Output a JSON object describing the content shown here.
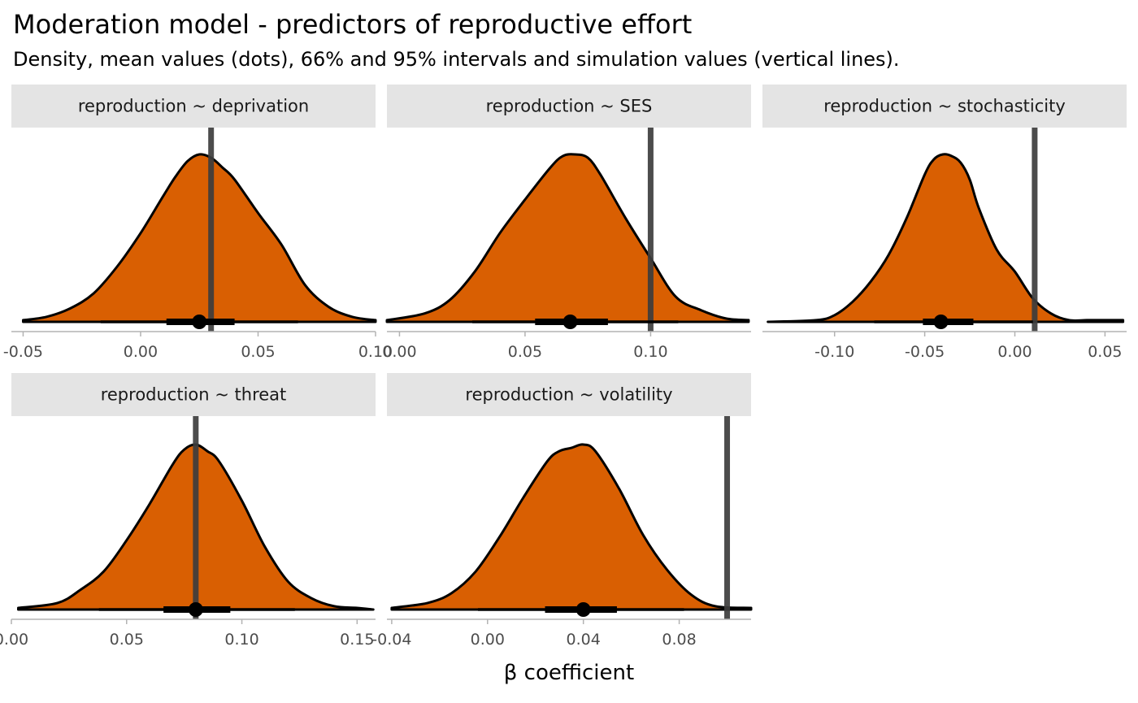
{
  "title": "Moderation model - predictors of reproductive effort",
  "subtitle": "Density, mean values (dots), 66% and 95% intervals and simulation values (vertical lines).",
  "x_axis_title": "β coefficient",
  "colors": {
    "fill": "#d95f02",
    "sim_line": "#3d3d3d",
    "strip": "#e4e4e4"
  },
  "chart_data": {
    "type": "area",
    "facet_layout": "3 columns × 2 rows",
    "xlabel": "β coefficient",
    "ylabel": "",
    "panels": [
      {
        "label": "reproduction ~ deprivation",
        "xlim": [
          -0.055,
          0.1
        ],
        "ticks": [
          -0.05,
          0.0,
          0.05,
          0.1
        ],
        "tick_labels": [
          "-0.05",
          "0.00",
          "0.05",
          "0.10"
        ],
        "mean": 0.025,
        "ci66": [
          0.011,
          0.04
        ],
        "ci95": [
          -0.017,
          0.067
        ],
        "simulation_value": 0.03,
        "density": {
          "x": [
            -0.05,
            -0.04,
            -0.03,
            -0.02,
            -0.01,
            0.0,
            0.01,
            0.015,
            0.02,
            0.025,
            0.03,
            0.035,
            0.04,
            0.05,
            0.06,
            0.07,
            0.08,
            0.09,
            0.1
          ],
          "y": [
            0.01,
            0.03,
            0.08,
            0.17,
            0.33,
            0.53,
            0.76,
            0.87,
            0.96,
            1.0,
            0.98,
            0.92,
            0.85,
            0.65,
            0.46,
            0.22,
            0.09,
            0.03,
            0.01
          ]
        }
      },
      {
        "label": "reproduction ~ SES",
        "xlim": [
          -0.005,
          0.14
        ],
        "ticks": [
          0.0,
          0.05,
          0.1
        ],
        "tick_labels": [
          "0.00",
          "0.05",
          "0.10"
        ],
        "mean": 0.068,
        "ci66": [
          0.054,
          0.083
        ],
        "ci95": [
          0.029,
          0.111
        ],
        "simulation_value": 0.1,
        "density": {
          "x": [
            -0.005,
            0.01,
            0.02,
            0.03,
            0.04,
            0.05,
            0.06,
            0.065,
            0.07,
            0.075,
            0.08,
            0.09,
            0.1,
            0.11,
            0.12,
            0.13,
            0.139
          ],
          "y": [
            0.01,
            0.05,
            0.13,
            0.3,
            0.53,
            0.73,
            0.92,
            0.99,
            1.0,
            0.98,
            0.88,
            0.62,
            0.38,
            0.15,
            0.07,
            0.02,
            0.01
          ]
        }
      },
      {
        "label": "reproduction ~ stochasticity",
        "xlim": [
          -0.14,
          0.062
        ],
        "ticks": [
          -0.1,
          -0.05,
          0.0,
          0.05
        ],
        "tick_labels": [
          "-0.10",
          "-0.05",
          "0.00",
          "0.05"
        ],
        "mean": -0.041,
        "ci66": [
          -0.051,
          -0.023
        ],
        "ci95": [
          -0.078,
          0.01
        ],
        "simulation_value": 0.011,
        "density": {
          "x": [
            -0.137,
            -0.11,
            -0.1,
            -0.09,
            -0.08,
            -0.07,
            -0.06,
            -0.05,
            -0.045,
            -0.04,
            -0.035,
            -0.03,
            -0.025,
            -0.02,
            -0.01,
            0.0,
            0.01,
            0.02,
            0.03,
            0.04,
            0.05,
            0.06
          ],
          "y": [
            0.0,
            0.01,
            0.04,
            0.12,
            0.24,
            0.4,
            0.62,
            0.88,
            0.97,
            1.0,
            0.99,
            0.95,
            0.85,
            0.68,
            0.43,
            0.3,
            0.14,
            0.05,
            0.01,
            0.01,
            0.01,
            0.01
          ]
        }
      },
      {
        "label": "reproduction ~ threat",
        "xlim": [
          0.0,
          0.158
        ],
        "ticks": [
          0.0,
          0.05,
          0.1,
          0.15
        ],
        "tick_labels": [
          "0.00",
          "0.05",
          "0.10",
          "0.15"
        ],
        "mean": 0.08,
        "ci66": [
          0.066,
          0.095
        ],
        "ci95": [
          0.038,
          0.123
        ],
        "simulation_value": 0.08,
        "density": {
          "x": [
            0.003,
            0.02,
            0.03,
            0.04,
            0.05,
            0.06,
            0.07,
            0.075,
            0.08,
            0.085,
            0.09,
            0.1,
            0.11,
            0.12,
            0.13,
            0.14,
            0.15,
            0.157
          ],
          "y": [
            0.01,
            0.04,
            0.12,
            0.23,
            0.42,
            0.64,
            0.88,
            0.97,
            1.0,
            0.96,
            0.9,
            0.66,
            0.38,
            0.17,
            0.07,
            0.02,
            0.01,
            0.0
          ]
        }
      },
      {
        "label": "reproduction ~ volatility",
        "xlim": [
          -0.042,
          0.11
        ],
        "ticks": [
          -0.04,
          0.0,
          0.04,
          0.08
        ],
        "tick_labels": [
          "-0.04",
          "0.00",
          "0.04",
          "0.08"
        ],
        "mean": 0.04,
        "ci66": [
          0.024,
          0.054
        ],
        "ci95": [
          -0.004,
          0.082
        ],
        "simulation_value": 0.1,
        "density": {
          "x": [
            -0.04,
            -0.025,
            -0.015,
            -0.005,
            0.005,
            0.015,
            0.025,
            0.03,
            0.035,
            0.04,
            0.045,
            0.055,
            0.065,
            0.075,
            0.085,
            0.095,
            0.11
          ],
          "y": [
            0.01,
            0.04,
            0.1,
            0.23,
            0.44,
            0.68,
            0.9,
            0.96,
            0.98,
            1.0,
            0.96,
            0.73,
            0.45,
            0.24,
            0.09,
            0.02,
            0.01
          ]
        }
      }
    ]
  }
}
